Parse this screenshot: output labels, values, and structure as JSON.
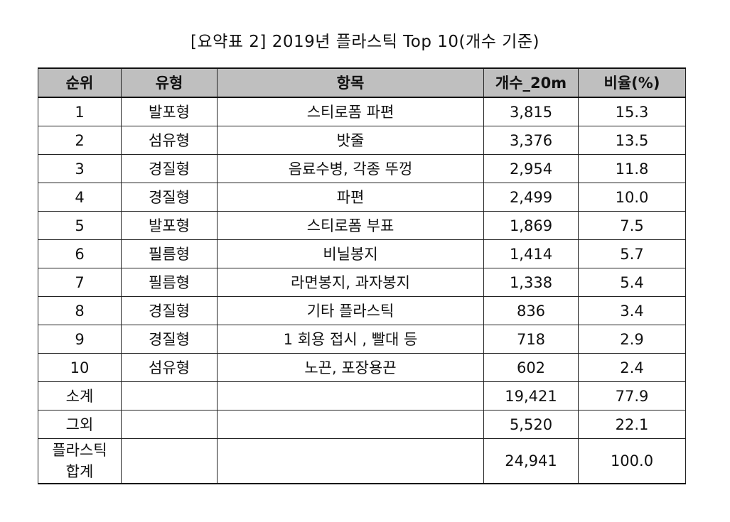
{
  "caption": "[요약표 2] 2019년 플라스틱 Top 10(개수 기준)",
  "table": {
    "headers": [
      "순위",
      "유형",
      "항목",
      "개수_20m",
      "비율(%)"
    ],
    "rows": [
      {
        "rank": "1",
        "type": "발포형",
        "item": "스티로폼 파편",
        "count": "3,815",
        "ratio": "15.3"
      },
      {
        "rank": "2",
        "type": "섬유형",
        "item": "밧줄",
        "count": "3,376",
        "ratio": "13.5"
      },
      {
        "rank": "3",
        "type": "경질형",
        "item": "음료수병, 각종 뚜껑",
        "count": "2,954",
        "ratio": "11.8"
      },
      {
        "rank": "4",
        "type": "경질형",
        "item": "파편",
        "count": "2,499",
        "ratio": "10.0"
      },
      {
        "rank": "5",
        "type": "발포형",
        "item": "스티로폼 부표",
        "count": "1,869",
        "ratio": "7.5"
      },
      {
        "rank": "6",
        "type": "필름형",
        "item": "비닐봉지",
        "count": "1,414",
        "ratio": "5.7"
      },
      {
        "rank": "7",
        "type": "필름형",
        "item": "라면봉지, 과자봉지",
        "count": "1,338",
        "ratio": "5.4"
      },
      {
        "rank": "8",
        "type": "경질형",
        "item": "기타 플라스틱",
        "count": "836",
        "ratio": "3.4"
      },
      {
        "rank": "9",
        "type": "경질형",
        "item": "1 회용 접시 , 빨대 등",
        "count": "718",
        "ratio": "2.9"
      },
      {
        "rank": "10",
        "type": "섬유형",
        "item": "노끈, 포장용끈",
        "count": "602",
        "ratio": "2.4"
      }
    ],
    "subtotal": {
      "label": "소계",
      "count": "19,421",
      "ratio": "77.9"
    },
    "others": {
      "label": "그외",
      "count": "5,520",
      "ratio": "22.1"
    },
    "total": {
      "label_line1": "플라스틱",
      "label_line2": "합계",
      "count": "24,941",
      "ratio": "100.0"
    }
  }
}
